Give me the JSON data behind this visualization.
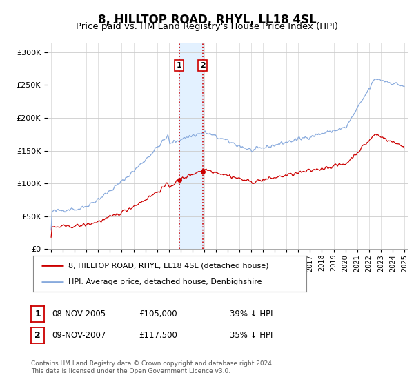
{
  "title": "8, HILLTOP ROAD, RHYL, LL18 4SL",
  "subtitle": "Price paid vs. HM Land Registry's House Price Index (HPI)",
  "title_fontsize": 12,
  "subtitle_fontsize": 9.5,
  "ylabel_ticks": [
    "£0",
    "£50K",
    "£100K",
    "£150K",
    "£200K",
    "£250K",
    "£300K"
  ],
  "ytick_values": [
    0,
    50000,
    100000,
    150000,
    200000,
    250000,
    300000
  ],
  "ylim": [
    0,
    315000
  ],
  "xlim_start": 1994.7,
  "xlim_end": 2025.3,
  "hpi_color": "#88aadd",
  "price_color": "#cc0000",
  "sale1_date": 2005.87,
  "sale2_date": 2007.87,
  "sale1_price": 105000,
  "sale2_price": 117500,
  "shade_color": "#ddeeff",
  "vline_color": "#cc0000",
  "legend_entry1": "8, HILLTOP ROAD, RHYL, LL18 4SL (detached house)",
  "legend_entry2": "HPI: Average price, detached house, Denbighshire",
  "table_row1": [
    "1",
    "08-NOV-2005",
    "£105,000",
    "39% ↓ HPI"
  ],
  "table_row2": [
    "2",
    "09-NOV-2007",
    "£117,500",
    "35% ↓ HPI"
  ],
  "footnote1": "Contains HM Land Registry data © Crown copyright and database right 2024.",
  "footnote2": "This data is licensed under the Open Government Licence v3.0.",
  "background_color": "#ffffff"
}
